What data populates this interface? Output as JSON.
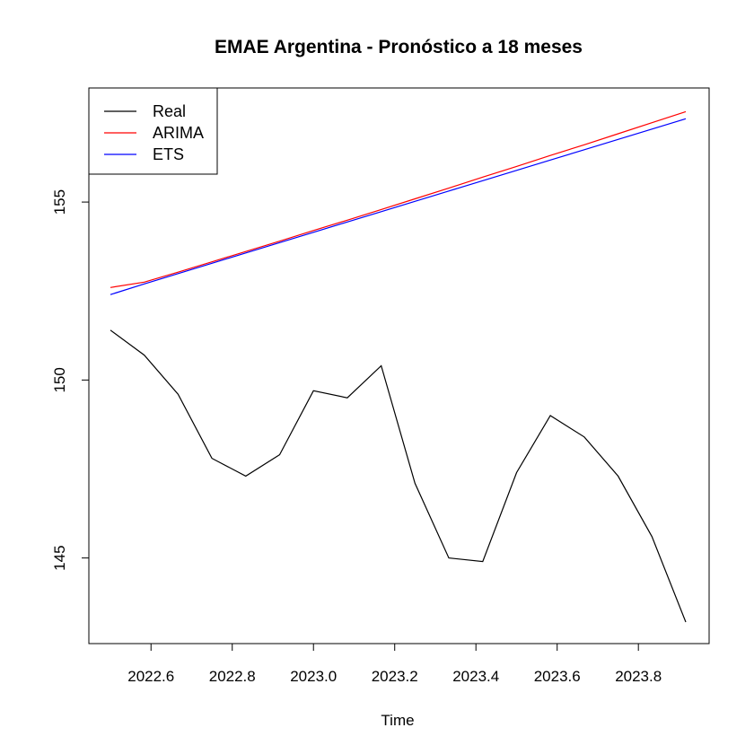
{
  "chart_data": {
    "type": "line",
    "title": "EMAE Argentina - Pronóstico a 18 meses",
    "xlabel": "Time",
    "ylabel": "",
    "x": [
      2022.5,
      2022.5833,
      2022.6667,
      2022.75,
      2022.8333,
      2022.9167,
      2023.0,
      2023.0833,
      2023.1667,
      2023.25,
      2023.3333,
      2023.4167,
      2023.5,
      2023.5833,
      2023.6667,
      2023.75,
      2023.8333,
      2023.9167
    ],
    "series": [
      {
        "name": "Real",
        "color": "#000000",
        "values": [
          151.4,
          150.7,
          149.6,
          147.8,
          147.3,
          147.9,
          149.7,
          149.5,
          150.4,
          147.1,
          145.0,
          144.9,
          147.4,
          149.0,
          148.4,
          147.3,
          145.6,
          143.2
        ]
      },
      {
        "name": "ARIMA",
        "color": "#ff0000",
        "values": [
          152.6,
          152.75,
          153.03,
          153.32,
          153.61,
          153.9,
          154.2,
          154.49,
          154.79,
          155.09,
          155.39,
          155.7,
          156.0,
          156.31,
          156.61,
          156.92,
          157.23,
          157.54
        ]
      },
      {
        "name": "ETS",
        "color": "#0000ff",
        "values": [
          152.4,
          152.7,
          152.99,
          153.28,
          153.57,
          153.86,
          154.15,
          154.44,
          154.73,
          155.02,
          155.31,
          155.6,
          155.89,
          156.18,
          156.47,
          156.76,
          157.05,
          157.34
        ]
      }
    ],
    "xlim": [
      2022.5,
      2023.9167
    ],
    "ylim": [
      143.2,
      157.6
    ],
    "xticks": [
      2022.6,
      2022.8,
      2023.0,
      2023.2,
      2023.4,
      2023.6,
      2023.8
    ],
    "xtick_labels": [
      "2022.6",
      "2022.8",
      "2023.0",
      "2023.2",
      "2023.4",
      "2023.6",
      "2023.8"
    ],
    "yticks": [
      145,
      150,
      155
    ],
    "ytick_labels": [
      "145",
      "150",
      "155"
    ],
    "legend_position": "top-left",
    "grid": false
  }
}
